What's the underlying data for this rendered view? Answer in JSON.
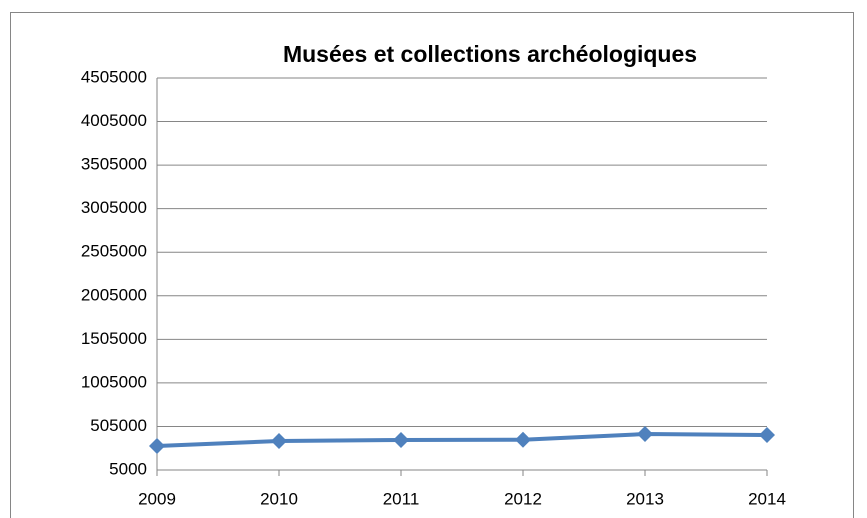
{
  "chart_data": {
    "type": "line",
    "title": "Musées et collections archéologiques",
    "categories": [
      "2009",
      "2010",
      "2011",
      "2012",
      "2013",
      "2014"
    ],
    "series": [
      {
        "name": "Musées et collections archéologiques",
        "color": "#4f81bd",
        "values": [
          280000,
          338000,
          350000,
          352000,
          418000,
          407000
        ]
      }
    ],
    "ylim": [
      5000,
      4505000
    ],
    "yticks": [
      5000,
      505000,
      1005000,
      1505000,
      2005000,
      2505000,
      3005000,
      3505000,
      4005000,
      4505000
    ],
    "grid": true
  }
}
